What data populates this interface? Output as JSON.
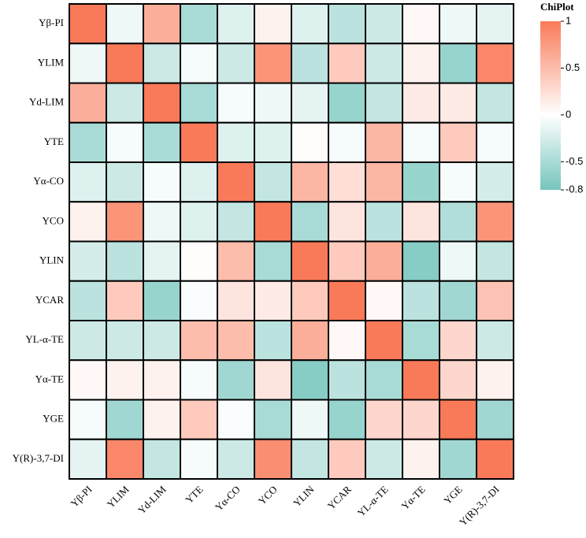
{
  "chart_data": {
    "type": "heatmap",
    "colorbar_title": "ChiPlot",
    "categories": [
      "Yβ-PI",
      "YLIM",
      "Yd-LIM",
      "YTE",
      "Yα-CO",
      "YCO",
      "YLIN",
      "YCAR",
      "YL-α-TE",
      "Yα-TE",
      "YGE",
      "Y(R)-3,7-DI"
    ],
    "x_categories": [
      "Yβ-PI",
      "YLIM",
      "Yd-LIM",
      "YTE",
      "Yα-CO",
      "YCO",
      "YLIN",
      "YCAR",
      "YL-α-TE",
      "Yα-TE",
      "YGE",
      "Y(R)-3,7-DI"
    ],
    "values": [
      [
        1,
        -0.1,
        0.6,
        -0.5,
        -0.2,
        0.1,
        -0.2,
        -0.4,
        -0.3,
        0.05,
        -0.1,
        -0.15
      ],
      [
        -0.1,
        1,
        -0.3,
        -0.05,
        -0.3,
        0.8,
        -0.4,
        0.4,
        -0.3,
        0.1,
        -0.6,
        0.9
      ],
      [
        0.6,
        -0.3,
        1,
        -0.5,
        -0.05,
        -0.1,
        -0.15,
        -0.6,
        -0.35,
        0.15,
        0.15,
        -0.35
      ],
      [
        -0.5,
        -0.05,
        -0.5,
        1,
        -0.2,
        -0.2,
        0.02,
        -0.05,
        0.55,
        -0.05,
        0.4,
        -0.05
      ],
      [
        -0.2,
        -0.3,
        -0.05,
        -0.2,
        1,
        -0.35,
        0.55,
        0.25,
        0.55,
        -0.6,
        -0.05,
        -0.25
      ],
      [
        0.1,
        0.8,
        -0.1,
        -0.2,
        -0.35,
        1,
        -0.5,
        0.2,
        -0.4,
        0.2,
        -0.45,
        0.8
      ],
      [
        -0.25,
        -0.4,
        -0.15,
        0.02,
        0.5,
        -0.5,
        1,
        0.4,
        0.6,
        -0.7,
        -0.1,
        -0.35
      ],
      [
        -0.4,
        0.4,
        -0.6,
        -0.03,
        0.2,
        0.15,
        0.4,
        1,
        0.05,
        -0.4,
        -0.55,
        0.45
      ],
      [
        -0.3,
        -0.3,
        -0.3,
        0.5,
        0.5,
        -0.4,
        0.6,
        0.05,
        1,
        -0.5,
        0.3,
        -0.3
      ],
      [
        0.05,
        0.1,
        0.1,
        -0.05,
        -0.55,
        0.2,
        -0.7,
        -0.4,
        -0.5,
        1,
        0.3,
        0.1
      ],
      [
        -0.05,
        -0.55,
        0.1,
        0.4,
        -0.03,
        -0.5,
        -0.1,
        -0.6,
        0.3,
        0.3,
        1,
        -0.55
      ],
      [
        -0.15,
        0.9,
        -0.35,
        -0.05,
        -0.3,
        0.85,
        -0.35,
        0.4,
        -0.3,
        0.1,
        -0.55,
        1
      ]
    ],
    "colorscale": {
      "low": "#76c5bd",
      "mid": "#ffffff",
      "high": "#f97a59"
    },
    "zlim": [
      -0.8,
      1
    ],
    "zticks": [
      1,
      0.5,
      0,
      -0.5,
      -0.8
    ]
  }
}
